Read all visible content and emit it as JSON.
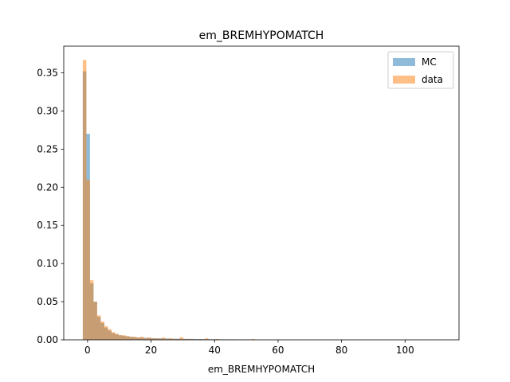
{
  "chart_data": {
    "type": "bar",
    "title": "em_BREMHYPOMATCH",
    "xlabel": "em_BREMHYPOMATCH",
    "ylabel": "",
    "xlim": [
      -7.5,
      117
    ],
    "ylim": [
      0,
      0.385
    ],
    "xticks": [
      0,
      20,
      40,
      60,
      80,
      100
    ],
    "yticks": [
      0.0,
      0.05,
      0.1,
      0.15,
      0.2,
      0.25,
      0.3,
      0.35
    ],
    "bin_start": -1.5,
    "bin_width": 1.13,
    "grid": false,
    "legend_position": "top-right",
    "series": [
      {
        "name": "MC",
        "color": "#1f77b4",
        "opacity": 0.5,
        "values": [
          0.352,
          0.27,
          0.074,
          0.05,
          0.03,
          0.022,
          0.016,
          0.012,
          0.009,
          0.007,
          0.006,
          0.005,
          0.0045,
          0.004,
          0.0035,
          0.003,
          0.003,
          0.0027,
          0.0025,
          0.0022,
          0.002,
          0.002,
          0.0018,
          0.0018,
          0.0016,
          0.0015,
          0.0015,
          0.0014,
          0.0013,
          0.0012,
          0.0012,
          0.0011,
          0.001,
          0.001,
          0.0009,
          0.0009,
          0.0008,
          0.0008,
          0.0007,
          0.0007,
          0.0006,
          0.0006,
          0.0006,
          0.0005,
          0.0005,
          0.0005,
          0.0004,
          0.0004
        ]
      },
      {
        "name": "data",
        "color": "#ff7f0e",
        "opacity": 0.5,
        "values": [
          0.367,
          0.21,
          0.078,
          0.05,
          0.032,
          0.024,
          0.018,
          0.014,
          0.01,
          0.008,
          0.006,
          0.006,
          0.005,
          0.004,
          0.004,
          0.003,
          0.004,
          0.002,
          0.003,
          0.002,
          0.002,
          0.0015,
          0.003,
          0.001,
          0.002,
          0.001,
          0.001,
          0.0035,
          0.001,
          0.001,
          0.001,
          0.0005,
          0.001,
          0.0005,
          0.002,
          0.0005,
          0.0005,
          0.001,
          0.0005,
          0.0005,
          0.0005,
          0.0005,
          0.0005,
          0.0005,
          0.0005,
          0.0003,
          0.0003,
          0.001
        ]
      }
    ]
  }
}
